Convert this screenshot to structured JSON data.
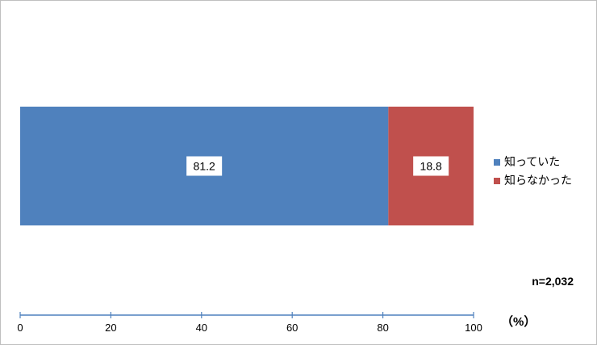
{
  "chart_data": {
    "type": "bar",
    "orientation": "horizontal",
    "stacked": true,
    "series": [
      {
        "name": "知っていた",
        "values": [
          81.2
        ],
        "color": "#4f81bd"
      },
      {
        "name": "知らなかった",
        "values": [
          18.8
        ],
        "color": "#c0504d"
      }
    ],
    "data_labels": [
      "81.2",
      "18.8"
    ],
    "x_axis": {
      "range": [
        0,
        100
      ],
      "ticks": [
        "0",
        "20",
        "40",
        "60",
        "80",
        "100"
      ],
      "unit_label": "（%）",
      "color": "#4f81bd"
    },
    "legend": {
      "placement": "right"
    },
    "annotation": "n=2,032",
    "grid": false
  }
}
